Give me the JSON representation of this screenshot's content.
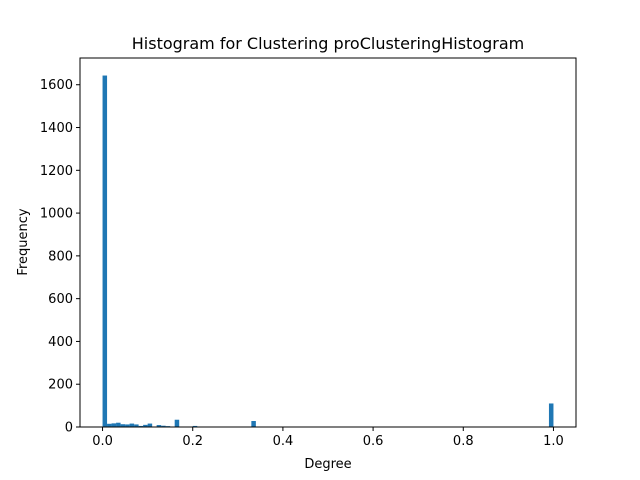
{
  "chart_data": {
    "type": "bar",
    "title": "Histogram for Clustering proClusteringHistogram",
    "xlabel": "Degree",
    "ylabel": "Frequency",
    "xlim": [
      -0.05,
      1.05
    ],
    "ylim": [
      0,
      1725
    ],
    "xticks": [
      0.0,
      0.2,
      0.4,
      0.6,
      0.8,
      1.0
    ],
    "xtick_labels": [
      "0.0",
      "0.2",
      "0.4",
      "0.6",
      "0.8",
      "1.0"
    ],
    "yticks": [
      0,
      200,
      400,
      600,
      800,
      1000,
      1200,
      1400,
      1600
    ],
    "ytick_labels": [
      "0",
      "200",
      "400",
      "600",
      "800",
      "1000",
      "1200",
      "1400",
      "1600"
    ],
    "bin_width": 0.01,
    "color": "#1f77b4",
    "grid": false,
    "bins": [
      {
        "x": 0.0,
        "value": 1643
      },
      {
        "x": 0.01,
        "value": 15
      },
      {
        "x": 0.02,
        "value": 17
      },
      {
        "x": 0.03,
        "value": 20
      },
      {
        "x": 0.04,
        "value": 13
      },
      {
        "x": 0.05,
        "value": 12
      },
      {
        "x": 0.06,
        "value": 16
      },
      {
        "x": 0.07,
        "value": 12
      },
      {
        "x": 0.08,
        "value": 5
      },
      {
        "x": 0.09,
        "value": 10
      },
      {
        "x": 0.1,
        "value": 16
      },
      {
        "x": 0.12,
        "value": 9
      },
      {
        "x": 0.13,
        "value": 6
      },
      {
        "x": 0.14,
        "value": 4
      },
      {
        "x": 0.16,
        "value": 34
      },
      {
        "x": 0.2,
        "value": 5
      },
      {
        "x": 0.33,
        "value": 28
      },
      {
        "x": 0.99,
        "value": 110
      }
    ]
  }
}
